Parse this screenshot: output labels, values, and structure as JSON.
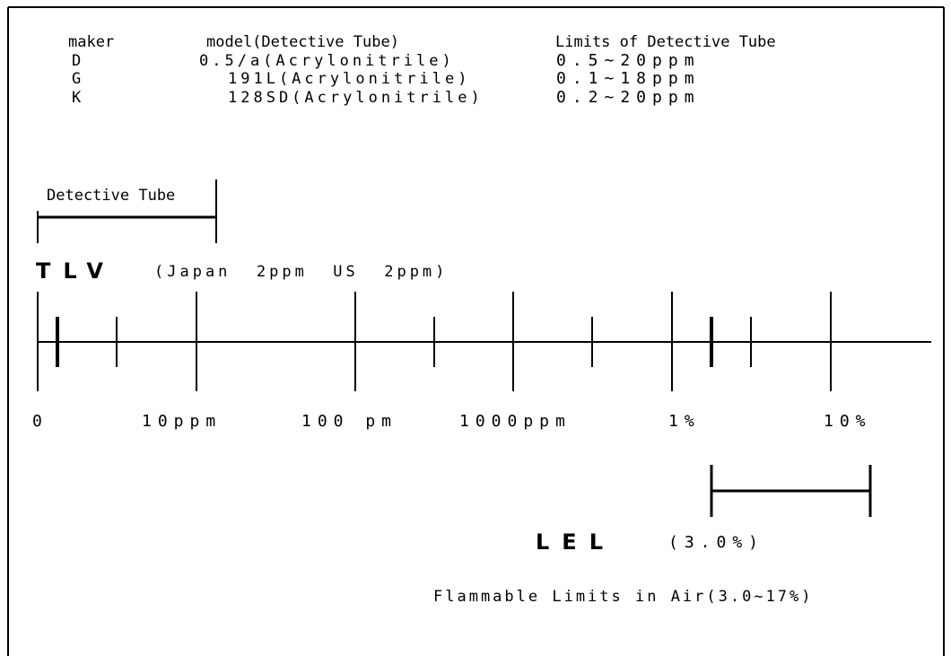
{
  "table": {
    "header": [
      "maker",
      "model(Detective Tube)",
      "Limits of Detective Tube"
    ],
    "rows": [
      [
        "D",
        "0.5/a(Acrylonitrile)",
        "0.5~20ppm"
      ],
      [
        "G",
        "191L(Acrylonitrile)",
        "0.1~18ppm"
      ],
      [
        "K",
        "128SD(Acrylonitrile)",
        "0.2~20ppm"
      ]
    ]
  },
  "detective_tube": "Detective Tube",
  "tlv": {
    "label": "TLV",
    "text": "(Japan  2ppm  US  2ppm)"
  },
  "scale_labels": [
    "0",
    "10ppm",
    "100 pm",
    "1000ppm",
    "1%",
    "10%"
  ],
  "lel": {
    "label": "LEL",
    "text": "(3.0%)"
  },
  "flammable": "Flammable Limits in Air(3.0~17%)"
}
